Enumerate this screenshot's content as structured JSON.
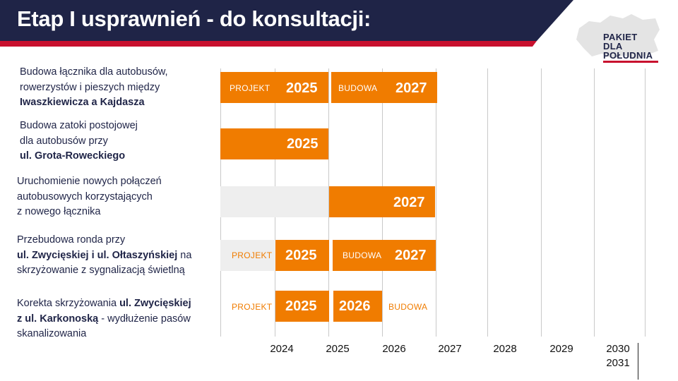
{
  "header": {
    "title": "Etap I usprawnień - do konsultacji:",
    "navy": "#1f2447",
    "accent_red": "#c8102e"
  },
  "logo": {
    "lines": [
      "PAKIET",
      "DLA",
      "POŁUDNIA"
    ]
  },
  "colors": {
    "bar": "#f07c00",
    "track": "#eeeeee",
    "grid": "#c9c9c9"
  },
  "rows": [
    {
      "lines": [
        [
          {
            "t": "Budowa łącznika dla autobusów,",
            "b": false
          }
        ],
        [
          {
            "t": "rowerzystów i pieszych między",
            "b": false
          }
        ],
        [
          {
            "t": "Iwaszkiewicza a Kajdasza",
            "b": true
          }
        ]
      ],
      "tags": [
        "PROJEKT",
        "BUDOWA"
      ],
      "years": [
        "2025",
        "2027"
      ]
    },
    {
      "lines": [
        [
          {
            "t": "Budowa zatoki postojowej",
            "b": false
          }
        ],
        [
          {
            "t": "dla autobusów przy",
            "b": false
          }
        ],
        [
          {
            "t": "ul. Grota-Roweckiego",
            "b": true
          }
        ]
      ],
      "years": [
        "2025"
      ]
    },
    {
      "lines": [
        [
          {
            "t": "Uruchomienie nowych połączeń",
            "b": false
          }
        ],
        [
          {
            "t": "autobusowych korzystających",
            "b": false
          }
        ],
        [
          {
            "t": "z nowego łącznika",
            "b": false
          }
        ]
      ],
      "years": [
        "2027"
      ]
    },
    {
      "lines": [
        [
          {
            "t": "Przebudowa ronda przy",
            "b": false
          }
        ],
        [
          {
            "t": "ul. Zwycięskiej i ul. Ołtaszyńskiej",
            "b": true
          },
          {
            "t": " na",
            "b": false
          }
        ],
        [
          {
            "t": "skrzyżowanie z sygnalizacją świetlną",
            "b": false
          }
        ]
      ],
      "tags": [
        "PROJEKT",
        "BUDOWA"
      ],
      "years": [
        "2025",
        "2027"
      ]
    },
    {
      "lines": [
        [
          {
            "t": "Korekta skrzyżowania ",
            "b": false
          },
          {
            "t": "ul. Zwycięskiej",
            "b": true
          }
        ],
        [
          {
            "t": "z ul. Karkonoską",
            "b": true
          },
          {
            "t": " - wydłużenie pasów",
            "b": false
          }
        ],
        [
          {
            "t": "skanalizowania",
            "b": false
          }
        ]
      ],
      "tags": [
        "PROJEKT",
        "BUDOWA"
      ],
      "years": [
        "2025",
        "2026"
      ]
    }
  ],
  "axis": {
    "labels": [
      "2024",
      "2025",
      "2026",
      "2027",
      "2028",
      "2029",
      "2030"
    ],
    "last_label_second_line": "2031"
  }
}
